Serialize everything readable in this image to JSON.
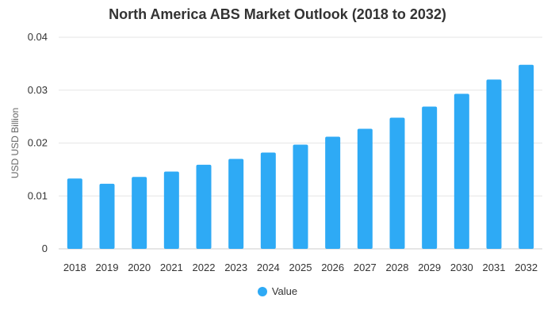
{
  "chart_data": {
    "type": "bar",
    "title": "North America ABS Market Outlook (2018 to 2032)",
    "xlabel": "",
    "ylabel": "USD USD Billion",
    "categories": [
      "2018",
      "2019",
      "2020",
      "2021",
      "2022",
      "2023",
      "2024",
      "2025",
      "2026",
      "2027",
      "2028",
      "2029",
      "2030",
      "2031",
      "2032"
    ],
    "series": [
      {
        "name": "Value",
        "values": [
          0.0133,
          0.0123,
          0.0136,
          0.0146,
          0.0159,
          0.017,
          0.0182,
          0.0197,
          0.0212,
          0.0227,
          0.0248,
          0.0269,
          0.0293,
          0.032,
          0.0348
        ]
      }
    ],
    "ylim": [
      0,
      0.04
    ],
    "yticks": [
      "0",
      "0.01",
      "0.02",
      "0.03",
      "0.04"
    ],
    "ytick_values": [
      0,
      0.01,
      0.02,
      0.03,
      0.04
    ],
    "grid": true,
    "legend_position": "bottom",
    "colors": {
      "bar": "#2eaaf5",
      "grid": "#e6e6e6",
      "text": "#333333"
    }
  }
}
